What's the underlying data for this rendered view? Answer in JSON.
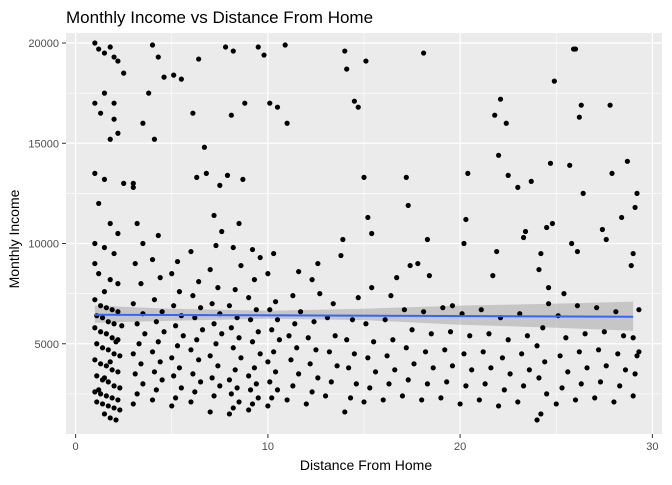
{
  "chart_data": {
    "type": "scatter",
    "title": "Monthly Income vs Distance From Home",
    "xlabel": "Distance From Home",
    "ylabel": "Monthly Income",
    "xlim": [
      -0.5,
      30.5
    ],
    "ylim": [
      500,
      20500
    ],
    "x_ticks": [
      0,
      10,
      20,
      30
    ],
    "y_ticks": [
      5000,
      10000,
      15000,
      20000
    ],
    "x_tick_labels": [
      "0",
      "10",
      "20",
      "30"
    ],
    "y_tick_labels": [
      "5000",
      "10000",
      "15000",
      "20000"
    ],
    "grid": true,
    "panel_background": "#ebebeb",
    "grid_color": "#ffffff",
    "point_color": "#000000",
    "trend": {
      "method": "lm",
      "x": [
        1,
        29
      ],
      "y": [
        6450,
        6350
      ],
      "band_lower_x": [
        1,
        5,
        10,
        15,
        20,
        25,
        29
      ],
      "band_lower_y": [
        6050,
        6150,
        6250,
        6180,
        5950,
        5800,
        5650
      ],
      "band_upper_x": [
        1,
        5,
        10,
        15,
        20,
        25,
        29
      ],
      "band_upper_y": [
        6900,
        6750,
        6650,
        6750,
        6900,
        7000,
        7100
      ],
      "line_color": "#3366ff",
      "band_color": "#999999"
    },
    "points": [
      [
        1.0,
        20000
      ],
      [
        1.2,
        19700
      ],
      [
        1.5,
        19500
      ],
      [
        1.8,
        19800
      ],
      [
        2.0,
        19300
      ],
      [
        2.2,
        19100
      ],
      [
        2.5,
        18500
      ],
      [
        2.0,
        17000
      ],
      [
        1.5,
        17500
      ],
      [
        1.0,
        17000
      ],
      [
        1.3,
        16500
      ],
      [
        2.0,
        16200
      ],
      [
        2.2,
        15500
      ],
      [
        1.8,
        15200
      ],
      [
        1.0,
        13500
      ],
      [
        1.5,
        13200
      ],
      [
        2.5,
        13000
      ],
      [
        3.0,
        12800
      ],
      [
        1.2,
        12000
      ],
      [
        1.8,
        11000
      ],
      [
        2.2,
        10500
      ],
      [
        1.0,
        10000
      ],
      [
        1.5,
        9800
      ],
      [
        2.0,
        9500
      ],
      [
        1.0,
        9000
      ],
      [
        1.2,
        8500
      ],
      [
        1.8,
        8200
      ],
      [
        2.2,
        8000
      ],
      [
        1.5,
        7600
      ],
      [
        1.0,
        7200
      ],
      [
        1.3,
        6900
      ],
      [
        1.6,
        6800
      ],
      [
        1.9,
        6700
      ],
      [
        2.2,
        6600
      ],
      [
        1.1,
        6400
      ],
      [
        1.4,
        6300
      ],
      [
        1.7,
        6100
      ],
      [
        2.0,
        6000
      ],
      [
        1.0,
        5800
      ],
      [
        1.3,
        5600
      ],
      [
        1.6,
        5500
      ],
      [
        1.9,
        5300
      ],
      [
        2.2,
        5200
      ],
      [
        1.1,
        5000
      ],
      [
        1.4,
        4800
      ],
      [
        1.7,
        4700
      ],
      [
        2.0,
        4500
      ],
      [
        2.3,
        4400
      ],
      [
        1.0,
        4200
      ],
      [
        1.3,
        4000
      ],
      [
        1.6,
        3900
      ],
      [
        1.9,
        3700
      ],
      [
        2.2,
        3600
      ],
      [
        1.1,
        3400
      ],
      [
        1.4,
        3200
      ],
      [
        1.7,
        3100
      ],
      [
        2.0,
        2900
      ],
      [
        2.3,
        2800
      ],
      [
        1.0,
        2600
      ],
      [
        1.3,
        2500
      ],
      [
        1.6,
        2400
      ],
      [
        1.9,
        2300
      ],
      [
        2.2,
        2200
      ],
      [
        1.1,
        2100
      ],
      [
        1.4,
        2000
      ],
      [
        1.7,
        1900
      ],
      [
        2.0,
        1800
      ],
      [
        2.3,
        1700
      ],
      [
        1.5,
        1500
      ],
      [
        1.8,
        1300
      ],
      [
        2.1,
        1200
      ],
      [
        1.2,
        2700
      ],
      [
        1.5,
        3300
      ],
      [
        1.8,
        4100
      ],
      [
        2.1,
        5100
      ],
      [
        2.4,
        5900
      ],
      [
        3.0,
        2000
      ],
      [
        3.2,
        2500
      ],
      [
        3.5,
        3000
      ],
      [
        3.1,
        3500
      ],
      [
        3.4,
        4000
      ],
      [
        3.0,
        4500
      ],
      [
        3.3,
        5000
      ],
      [
        3.6,
        5500
      ],
      [
        3.2,
        6000
      ],
      [
        3.5,
        6500
      ],
      [
        3.0,
        7000
      ],
      [
        3.4,
        8000
      ],
      [
        3.1,
        9000
      ],
      [
        3.5,
        10000
      ],
      [
        3.2,
        11000
      ],
      [
        3.0,
        13000
      ],
      [
        3.5,
        16000
      ],
      [
        3.8,
        17500
      ],
      [
        4.0,
        2200
      ],
      [
        4.2,
        2700
      ],
      [
        4.5,
        3200
      ],
      [
        4.1,
        3600
      ],
      [
        4.4,
        4100
      ],
      [
        4.0,
        4600
      ],
      [
        4.3,
        5100
      ],
      [
        4.6,
        5600
      ],
      [
        4.2,
        6100
      ],
      [
        4.5,
        6600
      ],
      [
        4.1,
        7200
      ],
      [
        4.4,
        8300
      ],
      [
        4.0,
        9200
      ],
      [
        4.3,
        10400
      ],
      [
        4.1,
        15200
      ],
      [
        4.3,
        19300
      ],
      [
        4.0,
        19900
      ],
      [
        4.6,
        18300
      ],
      [
        5.0,
        1900
      ],
      [
        5.2,
        2300
      ],
      [
        5.5,
        2800
      ],
      [
        5.1,
        3400
      ],
      [
        5.4,
        3800
      ],
      [
        5.0,
        4300
      ],
      [
        5.3,
        4900
      ],
      [
        5.6,
        5400
      ],
      [
        5.2,
        5900
      ],
      [
        5.5,
        6400
      ],
      [
        5.1,
        6900
      ],
      [
        5.4,
        7600
      ],
      [
        5.0,
        8500
      ],
      [
        5.3,
        9100
      ],
      [
        5.1,
        18400
      ],
      [
        5.5,
        18200
      ],
      [
        6.0,
        2100
      ],
      [
        6.2,
        2600
      ],
      [
        6.5,
        3100
      ],
      [
        6.1,
        3500
      ],
      [
        6.4,
        4200
      ],
      [
        6.0,
        4700
      ],
      [
        6.3,
        5200
      ],
      [
        6.6,
        5700
      ],
      [
        6.2,
        6300
      ],
      [
        6.5,
        6800
      ],
      [
        6.1,
        7400
      ],
      [
        6.4,
        8100
      ],
      [
        6.0,
        9600
      ],
      [
        6.3,
        13300
      ],
      [
        6.1,
        16500
      ],
      [
        6.4,
        19200
      ],
      [
        6.7,
        14800
      ],
      [
        6.8,
        13500
      ],
      [
        7.0,
        1600
      ],
      [
        7.2,
        2400
      ],
      [
        7.5,
        2900
      ],
      [
        7.1,
        3300
      ],
      [
        7.4,
        3900
      ],
      [
        7.0,
        4400
      ],
      [
        7.3,
        5000
      ],
      [
        7.6,
        5500
      ],
      [
        7.2,
        6000
      ],
      [
        7.5,
        6500
      ],
      [
        7.1,
        7000
      ],
      [
        7.4,
        7800
      ],
      [
        7.0,
        8700
      ],
      [
        7.3,
        9900
      ],
      [
        7.6,
        10600
      ],
      [
        7.2,
        11400
      ],
      [
        7.5,
        12900
      ],
      [
        7.9,
        13400
      ],
      [
        8.1,
        16400
      ],
      [
        7.8,
        19800
      ],
      [
        8.2,
        19600
      ],
      [
        8.0,
        1500
      ],
      [
        8.2,
        1800
      ],
      [
        8.5,
        2100
      ],
      [
        8.1,
        2500
      ],
      [
        8.4,
        2800
      ],
      [
        8.0,
        3200
      ],
      [
        8.3,
        3700
      ],
      [
        8.6,
        4300
      ],
      [
        8.2,
        4800
      ],
      [
        8.5,
        5300
      ],
      [
        8.1,
        5800
      ],
      [
        8.4,
        6300
      ],
      [
        8.0,
        6900
      ],
      [
        8.3,
        7700
      ],
      [
        8.6,
        8900
      ],
      [
        8.2,
        9800
      ],
      [
        8.5,
        11000
      ],
      [
        8.8,
        17000
      ],
      [
        8.7,
        13200
      ],
      [
        9.0,
        1700
      ],
      [
        9.2,
        2000
      ],
      [
        9.5,
        2300
      ],
      [
        9.1,
        2700
      ],
      [
        9.4,
        3000
      ],
      [
        9.0,
        3400
      ],
      [
        9.3,
        3800
      ],
      [
        9.6,
        4500
      ],
      [
        9.2,
        5100
      ],
      [
        9.5,
        5600
      ],
      [
        9.1,
        6200
      ],
      [
        9.4,
        6700
      ],
      [
        9.0,
        7300
      ],
      [
        9.3,
        8200
      ],
      [
        9.6,
        9300
      ],
      [
        9.2,
        9700
      ],
      [
        9.5,
        19800
      ],
      [
        9.8,
        19400
      ],
      [
        10.0,
        1900
      ],
      [
        10.2,
        2300
      ],
      [
        10.5,
        2700
      ],
      [
        10.1,
        3100
      ],
      [
        10.4,
        3600
      ],
      [
        10.0,
        4100
      ],
      [
        10.3,
        4600
      ],
      [
        10.6,
        5200
      ],
      [
        10.2,
        5700
      ],
      [
        10.5,
        6200
      ],
      [
        10.1,
        6700
      ],
      [
        10.4,
        7100
      ],
      [
        10.0,
        8500
      ],
      [
        10.3,
        9500
      ],
      [
        10.1,
        17000
      ],
      [
        10.5,
        16800
      ],
      [
        10.9,
        19900
      ],
      [
        11.0,
        16000
      ],
      [
        11.0,
        2200
      ],
      [
        11.3,
        2900
      ],
      [
        11.6,
        3500
      ],
      [
        11.2,
        4200
      ],
      [
        11.5,
        4800
      ],
      [
        11.1,
        5400
      ],
      [
        11.4,
        6000
      ],
      [
        11.7,
        6600
      ],
      [
        11.3,
        7400
      ],
      [
        11.6,
        8600
      ],
      [
        12.0,
        2000
      ],
      [
        12.3,
        2600
      ],
      [
        12.6,
        3300
      ],
      [
        12.2,
        4000
      ],
      [
        12.5,
        4700
      ],
      [
        12.1,
        5300
      ],
      [
        12.4,
        6100
      ],
      [
        12.7,
        7500
      ],
      [
        12.3,
        8200
      ],
      [
        12.6,
        9000
      ],
      [
        13.0,
        2400
      ],
      [
        13.3,
        3100
      ],
      [
        13.6,
        3900
      ],
      [
        13.2,
        4600
      ],
      [
        13.5,
        5400
      ],
      [
        13.1,
        6300
      ],
      [
        13.4,
        7000
      ],
      [
        13.8,
        9400
      ],
      [
        13.9,
        10200
      ],
      [
        14.0,
        1600
      ],
      [
        14.3,
        2300
      ],
      [
        14.6,
        3000
      ],
      [
        14.2,
        3800
      ],
      [
        14.5,
        4500
      ],
      [
        14.1,
        5200
      ],
      [
        14.4,
        6200
      ],
      [
        14.7,
        7300
      ],
      [
        14.0,
        19600
      ],
      [
        14.1,
        18700
      ],
      [
        14.5,
        17100
      ],
      [
        14.7,
        16800
      ],
      [
        15.0,
        2100
      ],
      [
        15.3,
        2800
      ],
      [
        15.6,
        3600
      ],
      [
        15.2,
        4300
      ],
      [
        15.5,
        5100
      ],
      [
        15.1,
        6000
      ],
      [
        15.4,
        7800
      ],
      [
        15.0,
        13300
      ],
      [
        15.2,
        11300
      ],
      [
        15.1,
        19100
      ],
      [
        15.4,
        10500
      ],
      [
        16.0,
        2200
      ],
      [
        16.3,
        3000
      ],
      [
        16.6,
        3700
      ],
      [
        16.2,
        4400
      ],
      [
        16.5,
        5200
      ],
      [
        16.1,
        6200
      ],
      [
        16.4,
        7400
      ],
      [
        16.7,
        8300
      ],
      [
        17.0,
        2400
      ],
      [
        17.3,
        3200
      ],
      [
        17.6,
        4000
      ],
      [
        17.2,
        4800
      ],
      [
        17.5,
        5700
      ],
      [
        17.1,
        6700
      ],
      [
        17.4,
        8900
      ],
      [
        17.3,
        11900
      ],
      [
        17.2,
        13300
      ],
      [
        17.8,
        9000
      ],
      [
        18.0,
        2200
      ],
      [
        18.3,
        3000
      ],
      [
        18.6,
        3800
      ],
      [
        18.2,
        4600
      ],
      [
        18.5,
        5500
      ],
      [
        18.1,
        6600
      ],
      [
        18.4,
        8400
      ],
      [
        18.1,
        19500
      ],
      [
        18.3,
        10200
      ],
      [
        19.0,
        2300
      ],
      [
        19.3,
        3100
      ],
      [
        19.6,
        3900
      ],
      [
        19.2,
        4700
      ],
      [
        19.5,
        5600
      ],
      [
        19.1,
        6800
      ],
      [
        19.6,
        6900
      ],
      [
        20.0,
        2000
      ],
      [
        20.3,
        2900
      ],
      [
        20.6,
        3700
      ],
      [
        20.2,
        4500
      ],
      [
        20.5,
        5400
      ],
      [
        20.1,
        6500
      ],
      [
        20.3,
        11200
      ],
      [
        20.4,
        13500
      ],
      [
        20.2,
        10000
      ],
      [
        21.0,
        2200
      ],
      [
        21.3,
        3000
      ],
      [
        21.6,
        3800
      ],
      [
        21.2,
        4600
      ],
      [
        21.5,
        5500
      ],
      [
        21.1,
        6700
      ],
      [
        21.8,
        16400
      ],
      [
        21.7,
        8400
      ],
      [
        21.9,
        9600
      ],
      [
        22.0,
        1900
      ],
      [
        22.3,
        2700
      ],
      [
        22.6,
        3500
      ],
      [
        22.2,
        4300
      ],
      [
        22.5,
        5200
      ],
      [
        22.1,
        6300
      ],
      [
        22.0,
        14400
      ],
      [
        22.1,
        17200
      ],
      [
        22.5,
        13400
      ],
      [
        22.4,
        16000
      ],
      [
        23.0,
        2100
      ],
      [
        23.3,
        2900
      ],
      [
        23.6,
        3700
      ],
      [
        23.2,
        4500
      ],
      [
        23.5,
        5400
      ],
      [
        23.1,
        6500
      ],
      [
        23.3,
        10300
      ],
      [
        23.4,
        10600
      ],
      [
        23.0,
        12800
      ],
      [
        23.7,
        13100
      ],
      [
        24.0,
        1200
      ],
      [
        24.2,
        1500
      ],
      [
        24.5,
        2500
      ],
      [
        24.1,
        3300
      ],
      [
        24.4,
        4100
      ],
      [
        24.0,
        4900
      ],
      [
        24.3,
        5800
      ],
      [
        24.6,
        7000
      ],
      [
        24.2,
        9500
      ],
      [
        24.5,
        10800
      ],
      [
        24.9,
        18100
      ],
      [
        24.8,
        11000
      ],
      [
        24.7,
        14000
      ],
      [
        24.1,
        8700
      ],
      [
        24.6,
        7800
      ],
      [
        25.0,
        2000
      ],
      [
        25.3,
        2800
      ],
      [
        25.6,
        3600
      ],
      [
        25.2,
        4400
      ],
      [
        25.5,
        5300
      ],
      [
        25.1,
        6400
      ],
      [
        25.4,
        7500
      ],
      [
        25.8,
        10000
      ],
      [
        25.9,
        19700
      ],
      [
        26.0,
        19700
      ],
      [
        25.7,
        13900
      ],
      [
        26.0,
        2200
      ],
      [
        26.3,
        3000
      ],
      [
        26.6,
        3800
      ],
      [
        26.2,
        4600
      ],
      [
        26.5,
        5500
      ],
      [
        26.1,
        6900
      ],
      [
        26.2,
        16300
      ],
      [
        26.3,
        16900
      ],
      [
        26.4,
        12500
      ],
      [
        26.1,
        9600
      ],
      [
        27.0,
        2300
      ],
      [
        27.3,
        3100
      ],
      [
        27.6,
        3900
      ],
      [
        27.2,
        4700
      ],
      [
        27.5,
        5600
      ],
      [
        27.1,
        6800
      ],
      [
        27.4,
        10700
      ],
      [
        27.6,
        10200
      ],
      [
        27.8,
        16900
      ],
      [
        27.9,
        13500
      ],
      [
        28.0,
        2100
      ],
      [
        28.3,
        2900
      ],
      [
        28.6,
        3700
      ],
      [
        28.2,
        4500
      ],
      [
        28.5,
        5400
      ],
      [
        28.1,
        6600
      ],
      [
        28.7,
        14100
      ],
      [
        28.4,
        11300
      ],
      [
        28.9,
        8900
      ],
      [
        29.0,
        2400
      ],
      [
        29.1,
        3500
      ],
      [
        29.2,
        4400
      ],
      [
        29.0,
        5300
      ],
      [
        29.3,
        6700
      ],
      [
        29.2,
        12500
      ],
      [
        29.1,
        11800
      ],
      [
        29.0,
        9500
      ],
      [
        29.3,
        4600
      ]
    ]
  }
}
